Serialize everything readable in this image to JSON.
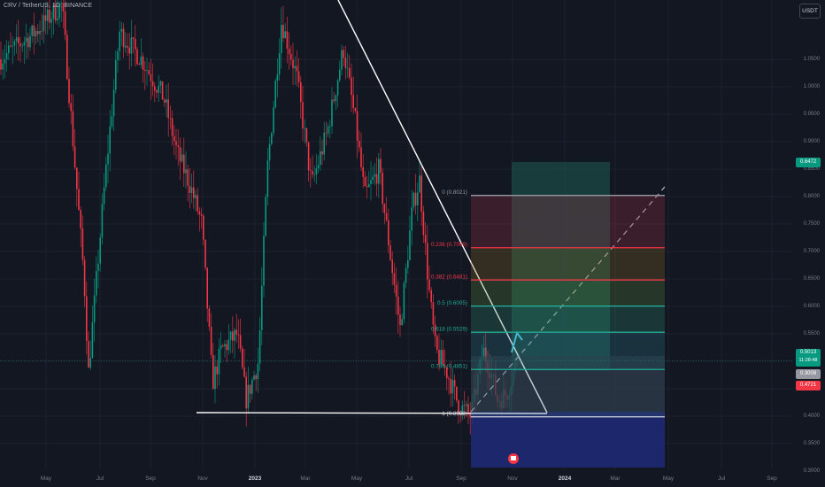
{
  "header": {
    "symbol_title": "CRV / TetherUS, 1D, BINANCE",
    "currency_button": "USDT"
  },
  "price_axis": {
    "range": [
      0.3,
      1.1
    ],
    "ticks": [
      "1.0500",
      "1.0000",
      "0.9500",
      "0.9000",
      "0.8500",
      "0.8000",
      "0.7500",
      "0.7000",
      "0.6500",
      "0.6000",
      "0.5500",
      "0.5000",
      "0.4500",
      "0.4000",
      "0.3500",
      "0.3000"
    ],
    "current_price_tag": {
      "value": "0.5013",
      "countdown": "11:28:48",
      "color": "#089981"
    },
    "green_tag": {
      "value": "0.6472",
      "color": "#089981"
    },
    "gray_tag": {
      "value": "0.3008",
      "color": "#9598a1"
    },
    "red_tag": {
      "value": "0.4721",
      "color": "#f23645"
    }
  },
  "time_axis": {
    "labels": [
      {
        "text": "May",
        "bold": false
      },
      {
        "text": "Jul",
        "bold": false
      },
      {
        "text": "Sep",
        "bold": false
      },
      {
        "text": "Nov",
        "bold": false
      },
      {
        "text": "2023",
        "bold": true
      },
      {
        "text": "Mar",
        "bold": false
      },
      {
        "text": "May",
        "bold": false
      },
      {
        "text": "Jul",
        "bold": false
      },
      {
        "text": "Sep",
        "bold": false
      },
      {
        "text": "Nov",
        "bold": false
      },
      {
        "text": "2024",
        "bold": true
      },
      {
        "text": "Mar",
        "bold": false
      },
      {
        "text": "May",
        "bold": false
      },
      {
        "text": "Jul",
        "bold": false
      },
      {
        "text": "Sep",
        "bold": false
      }
    ]
  },
  "fibonacci": {
    "levels": [
      {
        "ratio": "0",
        "price": "(0.8021)",
        "line_color": "#9598a1"
      },
      {
        "ratio": "0.236",
        "price": "(0.7069)",
        "line_color": "#f23645"
      },
      {
        "ratio": "0.382",
        "price": "(0.6481)",
        "line_color": "#f23645"
      },
      {
        "ratio": "0.5",
        "price": "(0.6005)",
        "line_color": "#22ab94"
      },
      {
        "ratio": "0.618",
        "price": "(0.5529)",
        "line_color": "#22ab94"
      },
      {
        "ratio": "0.786",
        "price": "(0.4851)",
        "line_color": "#22ab94"
      },
      {
        "ratio": "1",
        "price": "(0.3988)",
        "line_color": "#d1d4dc"
      }
    ]
  },
  "colors": {
    "background": "#131722",
    "up_candle": "#089981",
    "down_candle": "#f23645",
    "trendline": "#ffffff",
    "projection_arrow": "#4dd0e1"
  },
  "icons": {
    "events_marker": "flag-event-icon"
  }
}
